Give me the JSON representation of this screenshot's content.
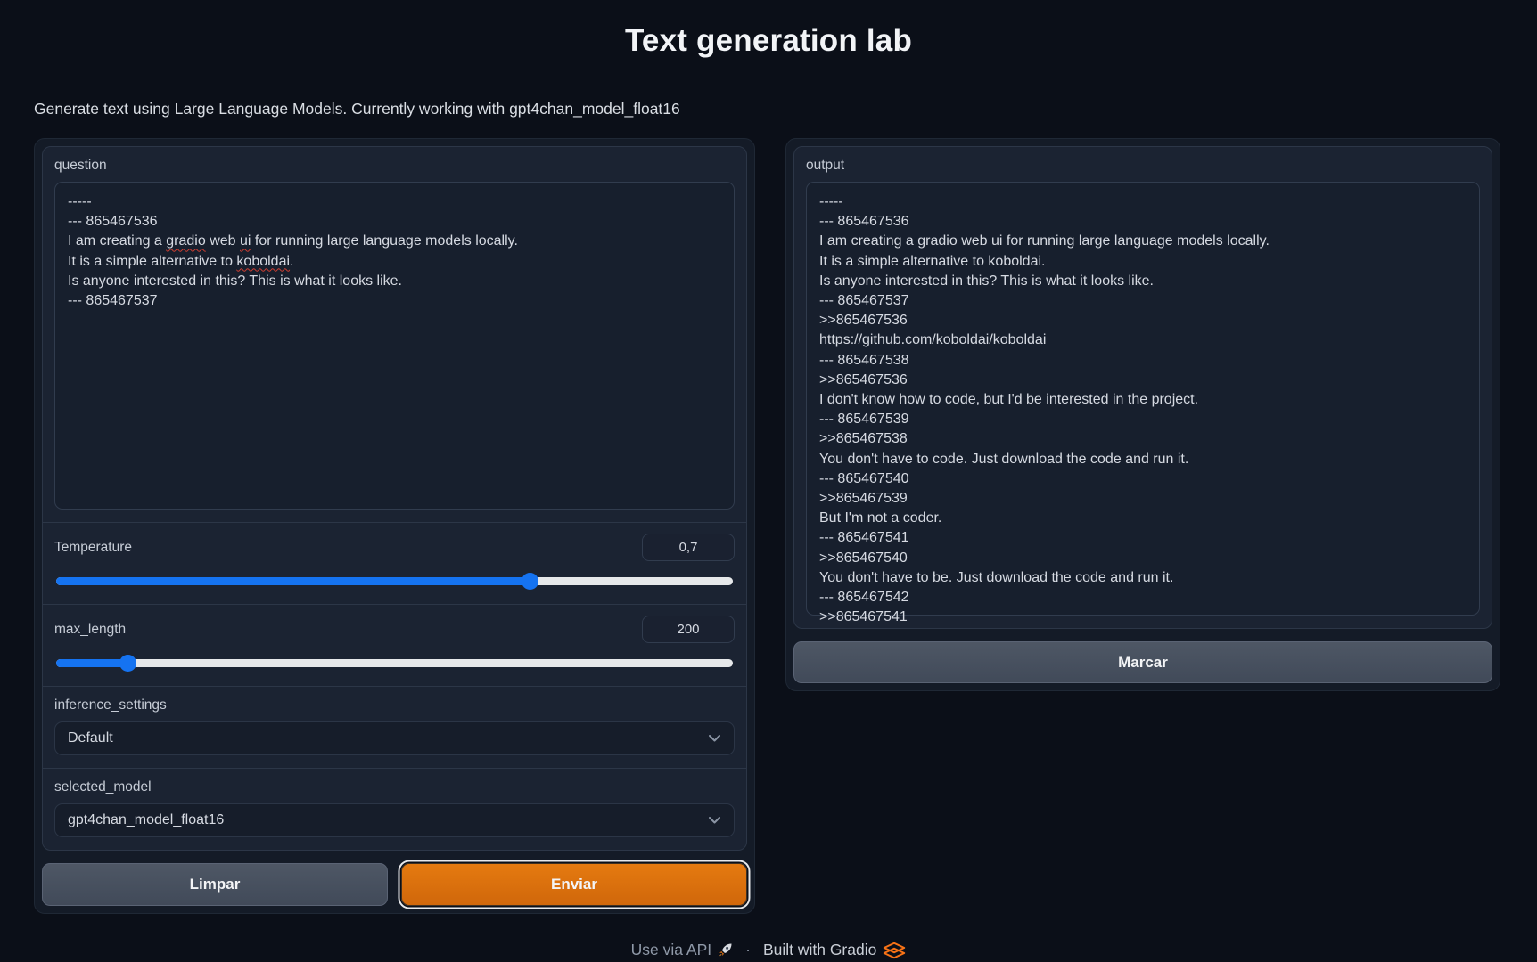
{
  "app": {
    "title": "Text generation lab",
    "subtitle": "Generate text using Large Language Models. Currently working with gpt4chan_model_float16"
  },
  "question": {
    "label": "question",
    "value": "-----\n--- 865467536\nI am creating a gradio web ui for running large language models locally.\nIt is a simple alternative to koboldai.\nIs anyone interested in this? This is what it looks like.\n--- 865467537",
    "misspelled_words": [
      "gradio",
      "ui",
      "koboldai"
    ]
  },
  "output": {
    "label": "output",
    "value": "-----\n--- 865467536\nI am creating a gradio web ui for running large language models locally.\nIt is a simple alternative to koboldai.\nIs anyone interested in this? This is what it looks like.\n--- 865467537\n>>865467536\nhttps://github.com/koboldai/koboldai\n--- 865467538\n>>865467536\nI don't know how to code, but I'd be interested in the project.\n--- 865467539\n>>865467538\nYou don't have to code. Just download the code and run it.\n--- 865467540\n>>865467539\nBut I'm not a coder.\n--- 865467541\n>>865467540\nYou don't have to be. Just download the code and run it.\n--- 865467542\n>>865467541"
  },
  "temperature": {
    "label": "Temperature",
    "value": "0,7",
    "percent": 70
  },
  "max_length": {
    "label": "max_length",
    "value": "200",
    "percent": 10.5
  },
  "inference_settings": {
    "label": "inference_settings",
    "selected": "Default"
  },
  "selected_model": {
    "label": "selected_model",
    "selected": "gpt4chan_model_float16"
  },
  "buttons": {
    "clear": "Limpar",
    "submit": "Enviar",
    "mark": "Marcar"
  },
  "footer": {
    "api_link": "Use via API",
    "separator": "·",
    "gradio_link": "Built with Gradio"
  },
  "colors": {
    "accent_blue": "#1573f1",
    "accent_orange": "#e07110",
    "spellcheck_red": "#cf3e31"
  }
}
